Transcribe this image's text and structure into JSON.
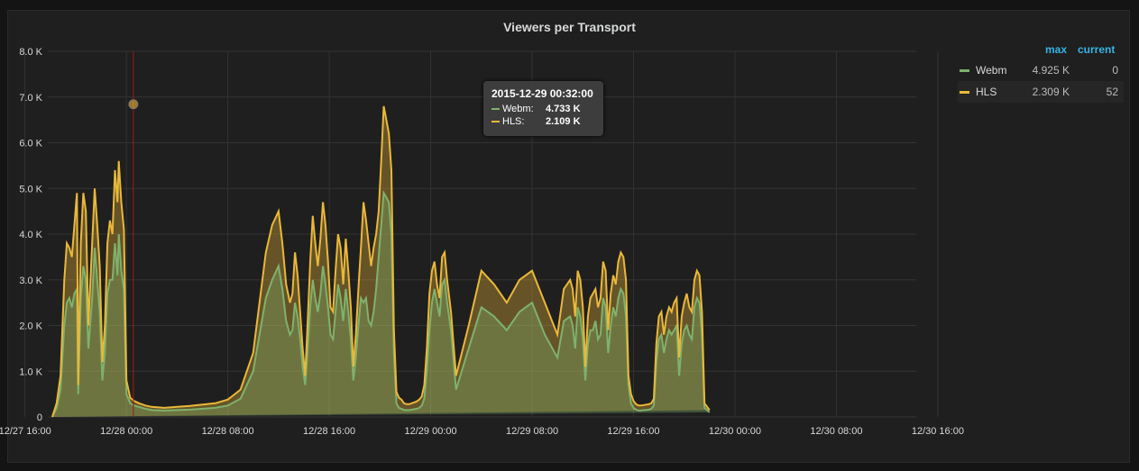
{
  "panel": {
    "title": "Viewers per Transport"
  },
  "legend": {
    "max_label": "max",
    "current_label": "current",
    "items": [
      {
        "name": "Webm",
        "color": "#7eb26d",
        "max": "4.925 K",
        "current": "0"
      },
      {
        "name": "HLS",
        "color": "#eab839",
        "max": "2.309 K",
        "current": "52"
      }
    ]
  },
  "tooltip": {
    "time": "2015-12-29 00:32:00",
    "rows": [
      {
        "name": "Webm:",
        "value": "4.733 K",
        "color": "#7eb26d"
      },
      {
        "name": "HLS:",
        "value": "2.109 K",
        "color": "#eab839"
      }
    ]
  },
  "chart_data": {
    "type": "area",
    "stacked": true,
    "title": "Viewers per Transport",
    "xlabel": "",
    "ylabel": "",
    "ylim": [
      0,
      8000
    ],
    "y_ticks": [
      "0",
      "1.0 K",
      "2.0 K",
      "3.0 K",
      "4.0 K",
      "5.0 K",
      "6.0 K",
      "7.0 K",
      "8.0 K"
    ],
    "x_ticks": [
      "12/27 16:00",
      "12/28 00:00",
      "12/28 08:00",
      "12/28 16:00",
      "12/29 00:00",
      "12/29 08:00",
      "12/29 16:00",
      "12/30 00:00",
      "12/30 08:00",
      "12/30 16:00"
    ],
    "grid": true,
    "legend_position": "right",
    "x_hours": [
      -5.85,
      -5.5,
      -5.2,
      -4.9,
      -4.7,
      -4.5,
      -4.3,
      -4.1,
      -3.9,
      -3.8,
      -3.6,
      -3.4,
      -3.2,
      -3.0,
      -2.7,
      -2.5,
      -2.3,
      -2.1,
      -1.9,
      -1.7,
      -1.5,
      -1.3,
      -1.1,
      -0.9,
      -0.7,
      -0.6,
      -0.4,
      -0.2,
      0.0,
      0.3,
      0.6,
      1.0,
      1.5,
      2.0,
      3.0,
      4.0,
      5.0,
      6.0,
      7.0,
      8.0,
      9.0,
      10.0,
      11.0,
      11.5,
      12.0,
      12.3,
      12.6,
      12.9,
      13.1,
      13.3,
      13.5,
      13.7,
      13.9,
      14.1,
      14.3,
      14.5,
      14.7,
      14.9,
      15.1,
      15.3,
      15.5,
      15.7,
      15.9,
      16.1,
      16.3,
      16.5,
      16.7,
      16.9,
      17.1,
      17.3,
      17.5,
      17.7,
      17.9,
      18.1,
      18.3,
      18.5,
      18.7,
      18.9,
      19.1,
      19.3,
      19.5,
      19.7,
      19.9,
      20.1,
      20.3,
      20.5,
      20.7,
      20.9,
      21.1,
      21.3,
      21.5,
      21.7,
      21.9,
      22.1,
      22.3,
      22.5,
      22.7,
      22.9,
      23.1,
      23.3,
      23.5,
      23.7,
      23.9,
      24.1,
      24.3,
      24.5,
      24.7,
      24.9,
      25.1,
      25.3,
      25.6,
      26.0,
      27.0,
      28.0,
      29.0,
      30.0,
      31.0,
      32.0,
      33.0,
      34.0,
      34.5,
      35.0,
      35.2,
      35.4,
      35.6,
      35.8,
      36.0,
      36.2,
      36.4,
      36.6,
      36.8,
      37.0,
      37.2,
      37.4,
      37.6,
      37.8,
      38.0,
      38.2,
      38.4,
      38.6,
      38.8,
      39.0,
      39.2,
      39.4,
      39.6,
      39.8,
      40.0,
      40.2,
      40.4,
      40.6,
      40.8,
      41.0,
      41.2,
      41.4,
      41.6,
      41.8,
      42.0,
      42.2,
      42.4,
      42.6,
      42.8,
      43.0,
      43.2,
      43.4,
      43.6,
      43.8,
      44.0,
      44.2,
      44.4,
      44.6,
      44.8,
      45.0,
      45.2,
      45.4,
      45.6,
      46.0,
      47.0,
      48.0,
      49.0,
      50.0,
      51.0,
      52.0,
      53.0,
      53.5,
      54.0,
      54.2,
      54.4,
      54.6,
      54.8,
      55.0,
      55.2,
      55.4,
      55.6,
      55.8,
      56.0,
      56.2,
      56.4,
      56.6,
      56.8,
      57.0,
      57.2,
      57.4,
      57.6,
      57.8,
      58.0,
      58.2,
      58.4,
      58.6,
      58.8,
      59.0,
      59.2,
      59.4,
      59.6,
      59.8,
      60.0,
      60.2,
      60.4,
      60.6,
      60.8,
      61.0,
      61.1,
      61.2,
      61.5
    ],
    "series": [
      {
        "name": "Webm",
        "color": "#7eb26d",
        "values": [
          0,
          200,
          600,
          2000,
          2500,
          2600,
          2400,
          2700,
          2800,
          500,
          2600,
          3300,
          3000,
          1500,
          2600,
          3700,
          3000,
          2300,
          800,
          1400,
          2700,
          3000,
          3000,
          3800,
          3100,
          4000,
          3200,
          2800,
          500,
          300,
          250,
          220,
          180,
          150,
          140,
          150,
          160,
          180,
          200,
          250,
          400,
          1000,
          2600,
          3000,
          3300,
          2800,
          2100,
          1800,
          1900,
          2500,
          2200,
          1700,
          1100,
          700,
          1500,
          2400,
          3000,
          2600,
          2300,
          2700,
          3300,
          2900,
          2400,
          1800,
          1700,
          2300,
          2900,
          2600,
          2100,
          2800,
          2300,
          1700,
          800,
          1300,
          2000,
          2600,
          2500,
          2600,
          2100,
          2000,
          2300,
          2800,
          3500,
          4200,
          4900,
          4800,
          4700,
          4000,
          1400,
          300,
          200,
          180,
          150,
          150,
          150,
          160,
          170,
          180,
          200,
          250,
          400,
          1000,
          1900,
          2500,
          2800,
          2500,
          2200,
          2900,
          3000,
          2500,
          1900,
          600,
          1500,
          2400,
          2200,
          1900,
          2300,
          2500,
          1800,
          1300,
          2100,
          2200,
          2000,
          1500,
          2400,
          2200,
          1700,
          800,
          1600,
          1900,
          1900,
          2100,
          1700,
          1800,
          2600,
          2400,
          1400,
          2000,
          2400,
          2200,
          2600,
          2800,
          2700,
          2200,
          700,
          300,
          200,
          160,
          140,
          140,
          150,
          150,
          160,
          180,
          250,
          1200,
          1700,
          1800,
          1400,
          1700,
          1900,
          1800,
          1900,
          2000,
          900,
          1600,
          1900,
          2000,
          1800,
          1700,
          2400,
          2600,
          2500,
          1800,
          200,
          100
        ],
        "overlay_hls": [
          0,
          300,
          900,
          3000,
          3800,
          3700,
          3500,
          4200,
          4900,
          700,
          3800,
          4900,
          4500,
          2000,
          3800,
          5000,
          4200,
          3300,
          1200,
          2000,
          3800,
          4300,
          4000,
          5400,
          4700,
          5600,
          4700,
          4100,
          800,
          420,
          350,
          300,
          250,
          220,
          200,
          220,
          240,
          270,
          300,
          380,
          600,
          1400,
          3600,
          4200,
          4500,
          3800,
          2900,
          2500,
          2700,
          3600,
          3100,
          2300,
          1500,
          900,
          2100,
          3400,
          4400,
          3800,
          3300,
          3900,
          4700,
          4200,
          3400,
          2400,
          2300,
          3200,
          4000,
          3700,
          2900,
          3900,
          3200,
          2400,
          1100,
          1800,
          2800,
          3700,
          4700,
          4300,
          3800,
          3300,
          3700,
          4000,
          4500,
          5600,
          6800,
          6500,
          6200,
          5400,
          1900,
          550,
          420,
          380,
          300,
          280,
          280,
          300,
          320,
          340,
          380,
          450,
          700,
          1500,
          2700,
          3200,
          3400,
          2900,
          2600,
          3500,
          3600,
          3000,
          2300,
          900,
          2000,
          3200,
          2900,
          2500,
          3000,
          3200,
          2500,
          1800,
          2800,
          3000,
          2800,
          2200,
          3200,
          3000,
          2400,
          1100,
          2200,
          2600,
          2700,
          2800,
          2400,
          2600,
          3400,
          3200,
          1900,
          2700,
          3100,
          2900,
          3400,
          3600,
          3500,
          3000,
          900,
          500,
          350,
          280,
          250,
          250,
          260,
          270,
          280,
          300,
          400,
          1600,
          2200,
          2300,
          1800,
          2200,
          2400,
          2300,
          2500,
          2600,
          1300,
          2200,
          2500,
          2700,
          2400,
          2300,
          3000,
          3200,
          3100,
          2300,
          300,
          150
        ]
      }
    ],
    "cursor": {
      "x_hours": 0.55,
      "hls_total": 6842,
      "webm": 4733
    }
  }
}
